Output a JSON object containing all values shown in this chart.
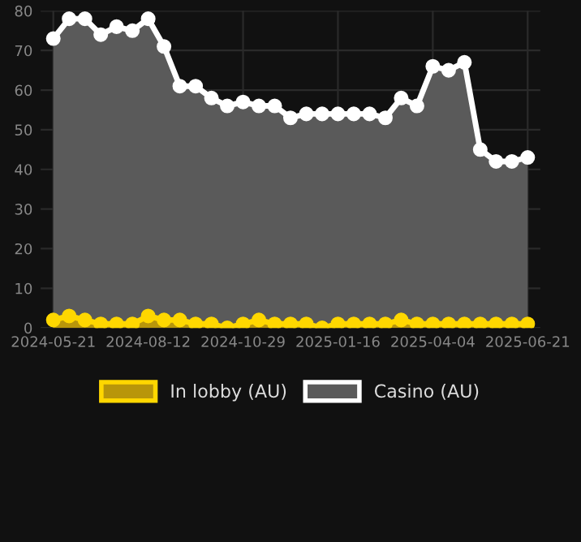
{
  "chart_data": {
    "type": "area",
    "categories": [
      "2024-05-21",
      null,
      null,
      null,
      null,
      null,
      "2024-08-12",
      null,
      null,
      null,
      null,
      null,
      "2024-10-29",
      null,
      null,
      null,
      null,
      null,
      "2025-01-16",
      null,
      null,
      null,
      null,
      null,
      "2025-04-04",
      null,
      null,
      null,
      null,
      null,
      "2025-06-21"
    ],
    "series": [
      {
        "name": "In lobby (AU)",
        "color": "#ffd700",
        "values": [
          2,
          3,
          2,
          1,
          1,
          1,
          3,
          2,
          2,
          1,
          1,
          0,
          1,
          2,
          1,
          1,
          1,
          0,
          1,
          1,
          1,
          1,
          2,
          1,
          1,
          1,
          1,
          1,
          1,
          1,
          1
        ]
      },
      {
        "name": "Casino (AU)",
        "color": "#ffffff",
        "values": [
          73,
          78,
          78,
          74,
          76,
          75,
          78,
          71,
          61,
          61,
          58,
          56,
          57,
          56,
          56,
          53,
          54,
          54,
          54,
          54,
          54,
          53,
          58,
          56,
          66,
          65,
          67,
          45,
          42,
          42,
          43
        ]
      }
    ],
    "ylim": [
      0,
      80
    ],
    "yticks": [
      0,
      10,
      20,
      30,
      40,
      50,
      60,
      70,
      80
    ],
    "grid": true,
    "legend": "bottom",
    "marker": "circle",
    "line_style": "solid"
  }
}
